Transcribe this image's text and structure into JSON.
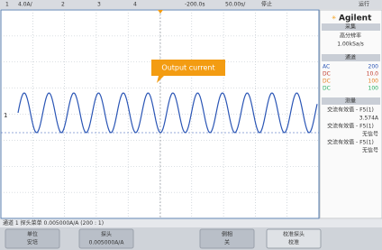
{
  "top_bar": {
    "items": [
      "1",
      "4.0A/",
      "2",
      "3",
      "4",
      "-200.0s",
      "50.00s/",
      "停止",
      "运行"
    ]
  },
  "brand": "Agilent",
  "panel": {
    "sections": [
      {
        "title": "采集",
        "lines": [
          "高分辨率",
          "1.00kSa/s"
        ]
      },
      {
        "title": "通道",
        "rows": [
          [
            "AC",
            "200"
          ],
          [
            "DC",
            "10.0"
          ],
          [
            "DC",
            "100"
          ],
          [
            "DC",
            "100"
          ]
        ]
      },
      {
        "title": "测量",
        "lines": [
          "交流有效值 - F5(1)",
          "3.574A",
          "交流有效值 - F5(1)",
          "无信号",
          "交流有效值 - F5(1)",
          "无信号"
        ]
      }
    ]
  },
  "annotation": "Output current",
  "status": "通道 1 探头菜单 0.005000A/A (200 : 1)",
  "softkeys": [
    {
      "label": "单位",
      "value": "安培"
    },
    {
      "label": "探头",
      "value": "0.005000A/A"
    },
    {
      "label": "倒相",
      "value": "关"
    },
    {
      "label": "校准探头",
      "value": "校准"
    }
  ]
}
